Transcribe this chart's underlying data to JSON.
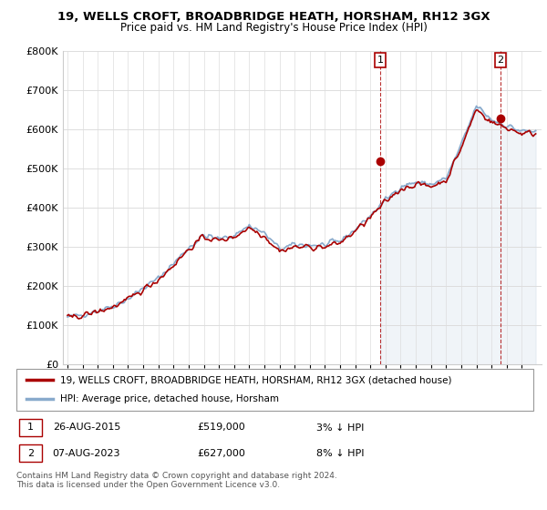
{
  "title": "19, WELLS CROFT, BROADBRIDGE HEATH, HORSHAM, RH12 3GX",
  "subtitle": "Price paid vs. HM Land Registry's House Price Index (HPI)",
  "hpi_label": "HPI: Average price, detached house, Horsham",
  "price_label": "19, WELLS CROFT, BROADBRIDGE HEATH, HORSHAM, RH12 3GX (detached house)",
  "annotation1_date": "26-AUG-2015",
  "annotation1_price": 519000,
  "annotation1_pct": "3% ↓ HPI",
  "annotation2_date": "07-AUG-2023",
  "annotation2_price": 627000,
  "annotation2_pct": "8% ↓ HPI",
  "footer": "Contains HM Land Registry data © Crown copyright and database right 2024.\nThis data is licensed under the Open Government Licence v3.0.",
  "price_color": "#aa0000",
  "hpi_color": "#88aacc",
  "shade_color": "#ddeeff",
  "ylim": [
    0,
    800000
  ],
  "yticks": [
    0,
    100000,
    200000,
    300000,
    400000,
    500000,
    600000,
    700000,
    800000
  ],
  "sale1_x": 2015.65,
  "sale1_y": 519000,
  "sale2_x": 2023.6,
  "sale2_y": 627000,
  "xmin": 1994.7,
  "xmax": 2026.3
}
